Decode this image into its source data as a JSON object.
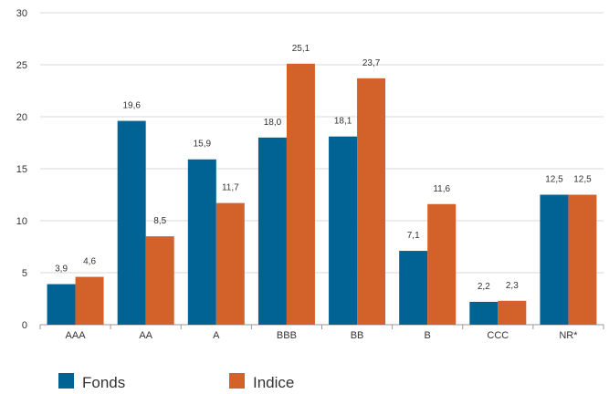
{
  "chart_data": {
    "type": "bar",
    "categories": [
      "AAA",
      "AA",
      "A",
      "BBB",
      "BB",
      "B",
      "CCC",
      "NR*"
    ],
    "series": [
      {
        "name": "Fonds",
        "values": [
          3.9,
          19.6,
          15.9,
          18.0,
          18.1,
          7.1,
          2.2,
          12.5
        ],
        "labels": [
          "3,9",
          "19,6",
          "15,9",
          "18,0",
          "18,1",
          "7,1",
          "2,2",
          "12,5"
        ]
      },
      {
        "name": "Indice",
        "values": [
          4.6,
          8.5,
          11.7,
          25.1,
          23.7,
          11.6,
          2.3,
          12.5
        ],
        "labels": [
          "4,6",
          "8,5",
          "11,7",
          "25,1",
          "23,7",
          "11,6",
          "2,3",
          "12,5"
        ]
      }
    ],
    "ylim": [
      0,
      30
    ],
    "yticks": [
      0,
      5,
      10,
      15,
      20,
      25,
      30
    ],
    "grid": true,
    "legend": "bottom-left",
    "colors": {
      "Fonds": "#006394",
      "Indice": "#d3612a"
    }
  }
}
